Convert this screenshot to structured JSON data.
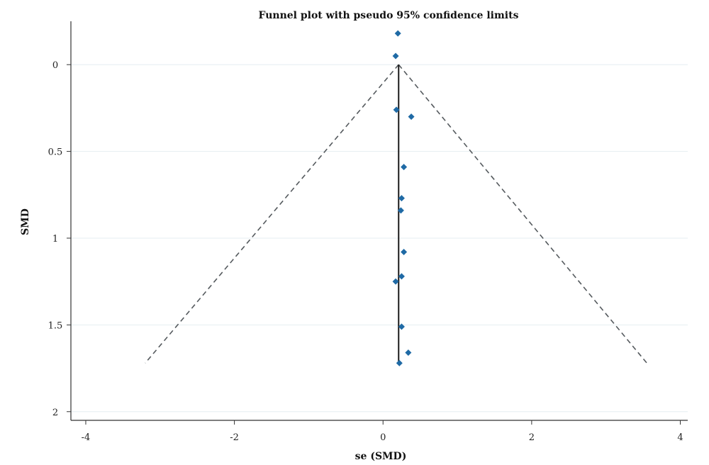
{
  "chart_data": {
    "type": "scatter",
    "title": "Funnel plot with pseudo 95% confidence limits",
    "xlabel": "se (SMD)",
    "ylabel": "SMD",
    "xlim": [
      -4.2,
      4.1
    ],
    "ylim": [
      2.05,
      -0.25
    ],
    "y_inverted": true,
    "grid": "horizontal",
    "xticks": [
      -4,
      -2,
      0,
      2,
      4
    ],
    "yticks": [
      0,
      0.5,
      1,
      1.5,
      2
    ],
    "xtick_labels": [
      "-4",
      "-2",
      "0",
      "2",
      "4"
    ],
    "ytick_labels": [
      "0",
      "0.5",
      "1",
      "1.5",
      "2"
    ],
    "colors": {
      "points": "#1f6aa5",
      "ci": "#555a5e",
      "center": "#1a1a1a",
      "grid": "#e6eef1"
    },
    "series": [
      {
        "marker": "diamond",
        "x": [
          0.2,
          0.17,
          0.18,
          0.38,
          0.28,
          0.25,
          0.24,
          0.28,
          0.25,
          0.17,
          0.25,
          0.34,
          0.22
        ],
        "y": [
          -0.18,
          -0.05,
          0.26,
          0.3,
          0.59,
          0.77,
          0.84,
          1.08,
          1.22,
          1.25,
          1.51,
          1.66,
          1.72
        ]
      }
    ],
    "center_line": {
      "x": 0.21,
      "y_from": 0.0,
      "y_to": 1.72
    },
    "confidence_limits": {
      "apex": [
        0.21,
        0.0
      ],
      "left_base": [
        -3.2,
        1.72
      ],
      "right_base": [
        3.55,
        1.72
      ]
    }
  }
}
